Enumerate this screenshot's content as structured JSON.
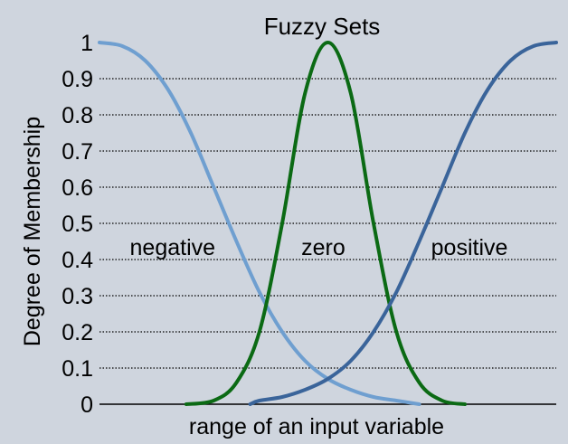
{
  "chart_data": {
    "type": "line",
    "title": "Fuzzy Sets",
    "xlabel": "range of an input variable",
    "ylabel": "Degree of Membership",
    "ylim": [
      0,
      1
    ],
    "xlim": [
      0,
      1
    ],
    "y_ticks": [
      "0",
      "0.1",
      "0.2",
      "0.3",
      "0.4",
      "0.5",
      "0.6",
      "0.7",
      "0.8",
      "0.9",
      "1"
    ],
    "grid": "horizontal dotted",
    "x": [
      0,
      0.05,
      0.1,
      0.15,
      0.2,
      0.25,
      0.3,
      0.35,
      0.4,
      0.45,
      0.5,
      0.55,
      0.6,
      0.65,
      0.7,
      0.75,
      0.8,
      0.85,
      0.9,
      0.95,
      1
    ],
    "series": [
      {
        "name": "negative",
        "color": "#6f9fd0",
        "x": [
          0,
          0.05,
          0.1,
          0.15,
          0.2,
          0.25,
          0.3,
          0.35,
          0.4,
          0.45,
          0.5,
          0.55,
          0.6,
          0.65,
          0.7
        ],
        "values": [
          1.0,
          0.99,
          0.95,
          0.87,
          0.75,
          0.6,
          0.45,
          0.31,
          0.2,
          0.12,
          0.07,
          0.04,
          0.02,
          0.01,
          0.0
        ]
      },
      {
        "name": "zero",
        "color": "#0b6a14",
        "x": [
          0.19,
          0.25,
          0.3,
          0.35,
          0.4,
          0.45,
          0.5,
          0.55,
          0.6,
          0.65,
          0.7,
          0.75,
          0.8
        ],
        "values": [
          0.0,
          0.01,
          0.06,
          0.2,
          0.5,
          0.86,
          1.0,
          0.86,
          0.5,
          0.2,
          0.06,
          0.01,
          0.0
        ]
      },
      {
        "name": "positive",
        "color": "#3a649a",
        "x": [
          0.33,
          0.35,
          0.4,
          0.45,
          0.5,
          0.55,
          0.6,
          0.65,
          0.7,
          0.75,
          0.8,
          0.85,
          0.9,
          0.95,
          1.0
        ],
        "values": [
          0.0,
          0.01,
          0.02,
          0.04,
          0.07,
          0.12,
          0.2,
          0.31,
          0.45,
          0.6,
          0.75,
          0.87,
          0.95,
          0.99,
          1.0
        ]
      }
    ],
    "set_labels": [
      {
        "text": "negative",
        "x": 0.16,
        "y": 0.43
      },
      {
        "text": "zero",
        "x": 0.49,
        "y": 0.43
      },
      {
        "text": "positive",
        "x": 0.81,
        "y": 0.43
      }
    ]
  }
}
